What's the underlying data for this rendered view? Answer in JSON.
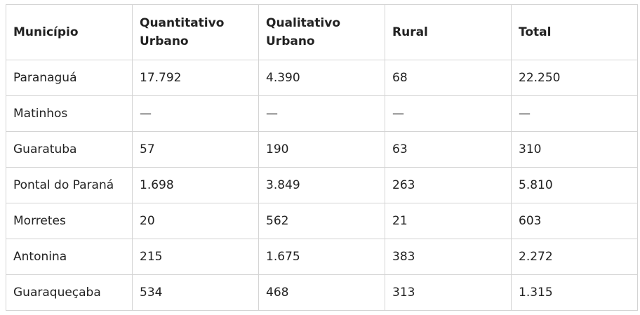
{
  "table": {
    "header": [
      "Município",
      "Quantitativo Urbano",
      "Qualitativo Urbano",
      "Rural",
      "Total"
    ],
    "rows": [
      [
        "Paranaguá",
        "17.792",
        "4.390",
        "68",
        "22.250"
      ],
      [
        "Matinhos",
        "—",
        "—",
        "—",
        "—"
      ],
      [
        "Guaratuba",
        "57",
        "190",
        "63",
        "310"
      ],
      [
        "Pontal do Paraná",
        "1.698",
        "3.849",
        "263",
        "5.810"
      ],
      [
        "Morretes",
        "20",
        "562",
        "21",
        "603"
      ],
      [
        "Antonina",
        "215",
        "1.675",
        "383",
        "2.272"
      ],
      [
        "Guaraqueçaba",
        "534",
        "468",
        "313",
        "1.315"
      ]
    ]
  }
}
